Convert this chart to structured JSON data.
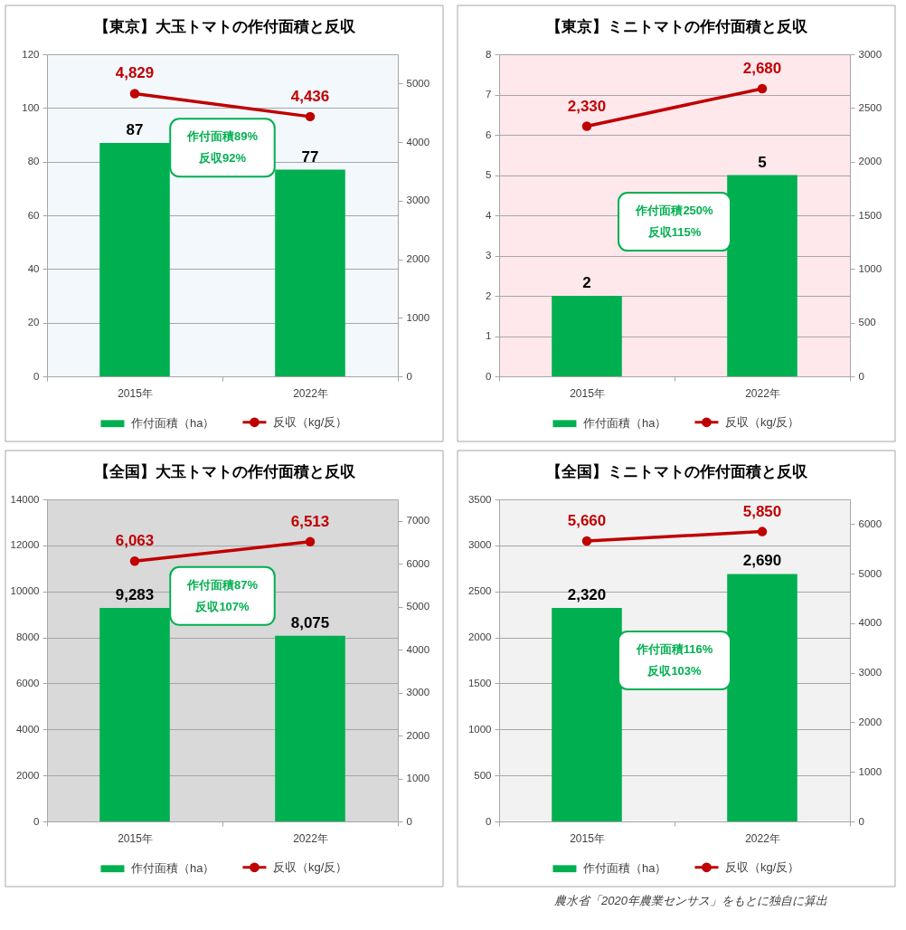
{
  "chart_data": [
    {
      "type": "bar",
      "title": "【東京】大玉トマトの作付面積と反収",
      "categories": [
        "2015年",
        "2022年"
      ],
      "series": [
        {
          "name": "作付面積（ha）",
          "color": "#00b050",
          "values": [
            87,
            77
          ],
          "value_labels": [
            "87",
            "77"
          ]
        },
        {
          "name": "反収（kg/反）",
          "type": "line",
          "axis": "y2",
          "color": "#c00000",
          "values": [
            4829,
            4436
          ],
          "value_labels": [
            "4,829",
            "4,436"
          ]
        }
      ],
      "ylim": [
        0,
        120
      ],
      "yticks": [
        0,
        20,
        40,
        60,
        80,
        100,
        120
      ],
      "y2lim": [
        0,
        5500
      ],
      "y2ticks": [
        0,
        1000,
        2000,
        3000,
        4000,
        5000
      ],
      "grid": "y",
      "legend": "bottom",
      "marker": "circle",
      "annotations": [
        "作付面積89%",
        "反収92%"
      ]
    },
    {
      "type": "bar",
      "title": "【東京】ミニトマトの作付面積と反収",
      "categories": [
        "2015年",
        "2022年"
      ],
      "series": [
        {
          "name": "作付面積（ha）",
          "color": "#00b050",
          "values": [
            2,
            5
          ],
          "value_labels": [
            "2",
            "5"
          ]
        },
        {
          "name": "反収（kg/反）",
          "type": "line",
          "axis": "y2",
          "color": "#c00000",
          "values": [
            2330,
            2680
          ],
          "value_labels": [
            "2,330",
            "2,680"
          ]
        }
      ],
      "ylim": [
        0,
        8
      ],
      "yticks": [
        0,
        1,
        2,
        3,
        4,
        5,
        6,
        7,
        8
      ],
      "y2lim": [
        0,
        3000
      ],
      "y2ticks": [
        0,
        500,
        1000,
        1500,
        2000,
        2500,
        3000
      ],
      "grid": "y",
      "legend": "bottom",
      "marker": "circle",
      "annotations": [
        "作付面積250%",
        "反収115%"
      ]
    },
    {
      "type": "bar",
      "title": "【全国】大玉トマトの作付面積と反収",
      "categories": [
        "2015年",
        "2022年"
      ],
      "series": [
        {
          "name": "作付面積（ha）",
          "color": "#00b050",
          "values": [
            9283,
            8075
          ],
          "value_labels": [
            "9,283",
            "8,075"
          ]
        },
        {
          "name": "反収（kg/反）",
          "type": "line",
          "axis": "y2",
          "color": "#c00000",
          "values": [
            6063,
            6513
          ],
          "value_labels": [
            "6,063",
            "6,513"
          ]
        }
      ],
      "ylim": [
        0,
        14000
      ],
      "yticks": [
        0,
        2000,
        4000,
        6000,
        8000,
        10000,
        12000,
        14000
      ],
      "y2lim": [
        0,
        7500
      ],
      "y2ticks": [
        0,
        1000,
        2000,
        3000,
        4000,
        5000,
        6000,
        7000
      ],
      "grid": "y",
      "legend": "bottom",
      "marker": "circle",
      "annotations": [
        "作付面積87%",
        "反収107%"
      ]
    },
    {
      "type": "bar",
      "title": "【全国】ミニトマトの作付面積と反収",
      "categories": [
        "2015年",
        "2022年"
      ],
      "series": [
        {
          "name": "作付面積（ha）",
          "color": "#00b050",
          "values": [
            2320,
            2690
          ],
          "value_labels": [
            "2,320",
            "2,690"
          ]
        },
        {
          "name": "反収（kg/反）",
          "type": "line",
          "axis": "y2",
          "color": "#c00000",
          "values": [
            5660,
            5850
          ],
          "value_labels": [
            "5,660",
            "5,850"
          ]
        }
      ],
      "ylim": [
        0,
        3500
      ],
      "yticks": [
        0,
        500,
        1000,
        1500,
        2000,
        2500,
        3000,
        3500
      ],
      "y2lim": [
        0,
        6500
      ],
      "y2ticks": [
        0,
        1000,
        2000,
        3000,
        4000,
        5000,
        6000
      ],
      "grid": "y",
      "legend": "bottom",
      "marker": "circle",
      "annotations": [
        "作付面積116%",
        "反収103%",
        "農水省「2020年農業センサス」をもとに独自に算出"
      ]
    }
  ]
}
